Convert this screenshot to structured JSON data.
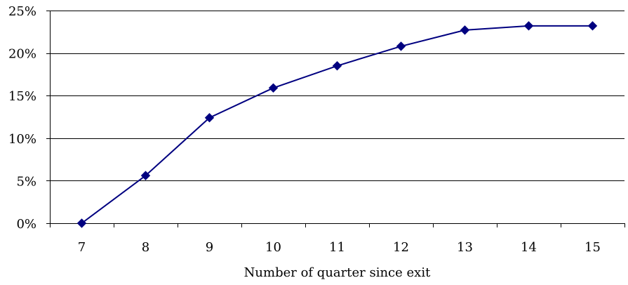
{
  "chart_data": {
    "type": "line",
    "title": "",
    "xlabel": "Number of quarter since exit",
    "ylabel": "",
    "categories": [
      "7",
      "8",
      "9",
      "10",
      "11",
      "12",
      "13",
      "14",
      "15"
    ],
    "series": [
      {
        "values": [
          0.0,
          5.6,
          12.4,
          15.9,
          18.5,
          20.8,
          22.7,
          23.2,
          23.2
        ],
        "color": "#000080",
        "marker": "diamond"
      }
    ],
    "ylim": [
      0,
      25
    ],
    "yticks": [
      0,
      5,
      10,
      15,
      20,
      25
    ],
    "ytick_labels": [
      "0%",
      "5%",
      "10%",
      "15%",
      "20%",
      "25%"
    ],
    "grid": "horizontal",
    "legend": "none"
  }
}
